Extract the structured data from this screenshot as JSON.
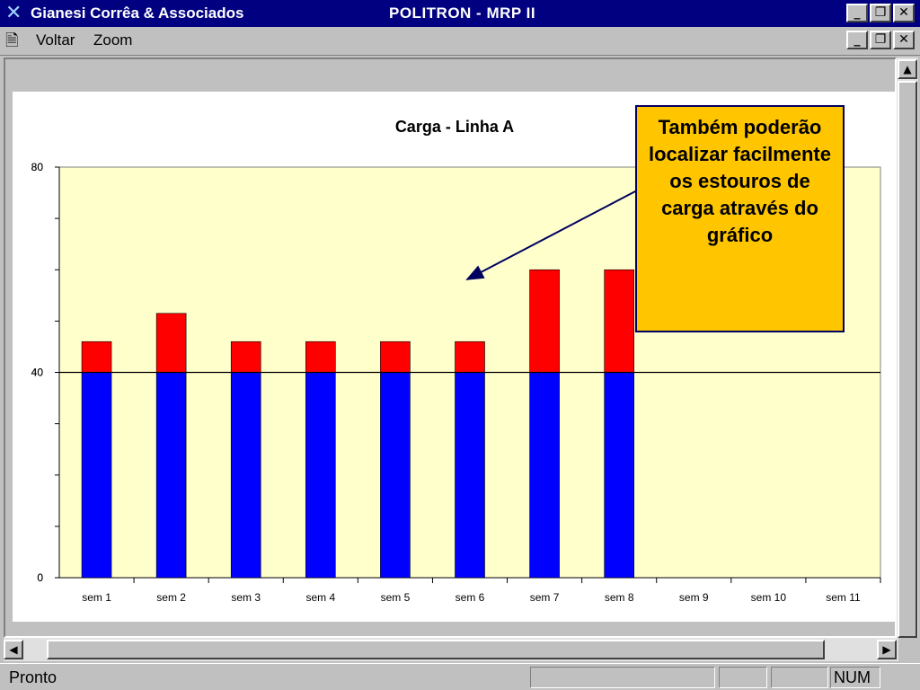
{
  "titlebar": {
    "app_name": "Gianesi Corrêa & Associados",
    "window_title": "POLITRON - MRP II",
    "minimize": "_",
    "restore": "❐",
    "close": "✕"
  },
  "menubar": {
    "items": [
      "Voltar",
      "Zoom"
    ],
    "minimize": "_",
    "restore": "❐",
    "close": "✕"
  },
  "statusbar": {
    "text": "Pronto",
    "num": "NUM"
  },
  "callout": {
    "text": "Também poderão localizar facilmente os estouros de carga através do gráfico"
  },
  "chart_data": {
    "type": "bar",
    "stacked": true,
    "title": "Carga - Linha A",
    "categories": [
      "sem 1",
      "sem 2",
      "sem 3",
      "sem 4",
      "sem 5",
      "sem 6",
      "sem 7",
      "sem 8",
      "sem 9",
      "sem 10",
      "sem 11"
    ],
    "series": [
      {
        "values": [
          40,
          40,
          40,
          40,
          40,
          40,
          40,
          40,
          0,
          0,
          0
        ],
        "color": "#0000ff"
      },
      {
        "values": [
          6,
          11.5,
          6,
          6,
          6,
          6,
          20,
          20,
          0,
          0,
          0
        ],
        "color": "#ff0000"
      }
    ],
    "ylim": [
      0,
      80
    ],
    "yticks": [
      0,
      40,
      80
    ],
    "capacity_line": 40,
    "plot_background": "#ffffcc"
  }
}
